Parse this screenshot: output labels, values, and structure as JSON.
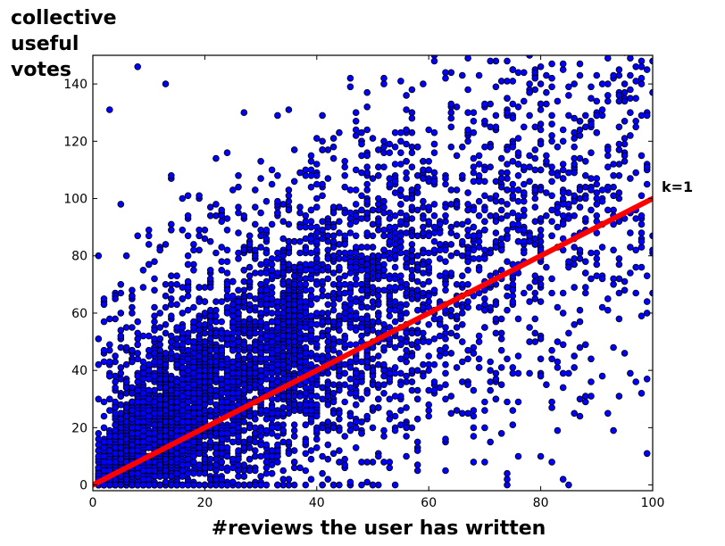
{
  "chart_data": {
    "type": "scatter",
    "title": "",
    "xlabel": "#reviews the user has written",
    "ylabel_lines": [
      "collective",
      "useful",
      "votes"
    ],
    "xlim": [
      0,
      100
    ],
    "ylim": [
      -2,
      150
    ],
    "xticks": [
      0,
      20,
      40,
      60,
      80,
      100
    ],
    "yticks": [
      0,
      20,
      40,
      60,
      80,
      100,
      120,
      140
    ],
    "grid": false,
    "marker_color": "#0000ff",
    "marker_edge": "#000000",
    "line_color": "#ff0000",
    "points_estimated": true,
    "points_seed": 7,
    "point_density": [
      {
        "x_range": [
          1,
          5
        ],
        "count": 500,
        "slope_mean": 1.6,
        "spread": 6
      },
      {
        "x_range": [
          5,
          20
        ],
        "count": 1700,
        "slope_mean": 1.5,
        "spread": 14
      },
      {
        "x_range": [
          20,
          40
        ],
        "count": 1600,
        "slope_mean": 1.35,
        "spread": 22
      },
      {
        "x_range": [
          40,
          60
        ],
        "count": 900,
        "slope_mean": 1.25,
        "spread": 28
      },
      {
        "x_range": [
          60,
          80
        ],
        "count": 550,
        "slope_mean": 1.2,
        "spread": 32
      },
      {
        "x_range": [
          80,
          100
        ],
        "count": 380,
        "slope_mean": 1.1,
        "spread": 36
      }
    ],
    "highlighted_points": [
      {
        "x": 8,
        "y": 146
      },
      {
        "x": 13,
        "y": 140
      },
      {
        "x": 3,
        "y": 131
      },
      {
        "x": 1,
        "y": 80
      },
      {
        "x": 5,
        "y": 98
      },
      {
        "x": 74,
        "y": 4
      },
      {
        "x": 82,
        "y": 8
      },
      {
        "x": 99,
        "y": 11
      }
    ],
    "fit_line": {
      "slope": 1,
      "intercept": 0,
      "x": [
        0,
        100
      ],
      "label": "k=1"
    }
  }
}
